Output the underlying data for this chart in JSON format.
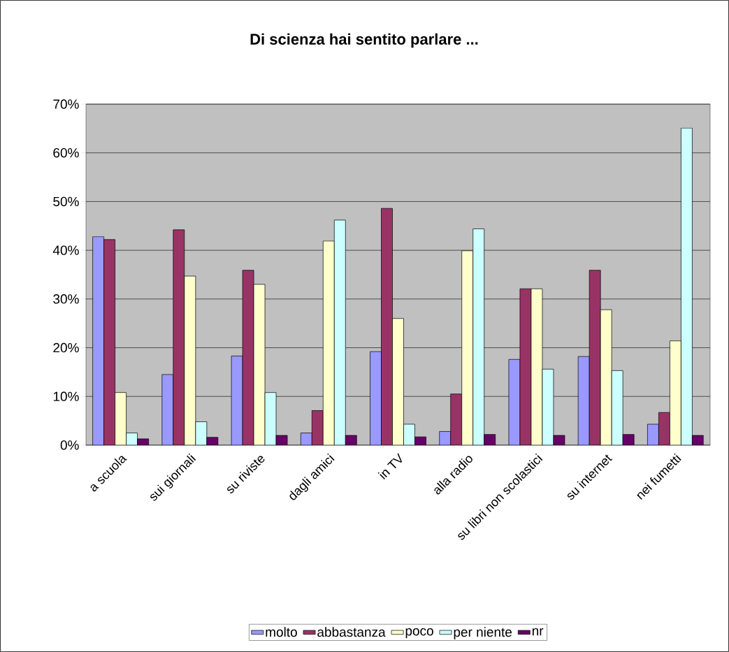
{
  "chart_data": {
    "type": "bar",
    "title": "Di scienza hai sentito parlare ...",
    "categories": [
      "a scuola",
      "sui giornali",
      "su riviste",
      "dagli amici",
      "in TV",
      "alla radio",
      "su libri non scolastici",
      "su internet",
      "nei fumetti"
    ],
    "series": [
      {
        "name": "molto",
        "color": "#9999ff",
        "values": [
          42.8,
          14.5,
          18.3,
          2.5,
          19.2,
          2.8,
          17.6,
          18.2,
          4.3
        ]
      },
      {
        "name": "abbastanza",
        "color": "#993366",
        "values": [
          42.2,
          44.2,
          35.9,
          7.1,
          48.6,
          10.5,
          32.1,
          35.9,
          6.7
        ]
      },
      {
        "name": "poco",
        "color": "#ffffcc",
        "values": [
          10.8,
          34.7,
          33.0,
          41.9,
          26.0,
          39.9,
          32.1,
          27.8,
          21.4
        ]
      },
      {
        "name": "per niente",
        "color": "#ccffff",
        "values": [
          2.5,
          4.8,
          10.8,
          46.2,
          4.3,
          44.4,
          15.6,
          15.3,
          65.1
        ]
      },
      {
        "name": "nr",
        "color": "#660066",
        "values": [
          1.3,
          1.6,
          2.0,
          2.0,
          1.7,
          2.2,
          2.0,
          2.2,
          2.0
        ]
      }
    ],
    "ylim": [
      0,
      70
    ],
    "yticks": [
      {
        "value": 0,
        "label": "0%"
      },
      {
        "value": 10,
        "label": "10%"
      },
      {
        "value": 20,
        "label": "20%"
      },
      {
        "value": 30,
        "label": "30%"
      },
      {
        "value": 40,
        "label": "40%"
      },
      {
        "value": 50,
        "label": "50%"
      },
      {
        "value": 60,
        "label": "60%"
      },
      {
        "value": 70,
        "label": "70%"
      }
    ],
    "grid": "y",
    "legend": "bottom"
  }
}
